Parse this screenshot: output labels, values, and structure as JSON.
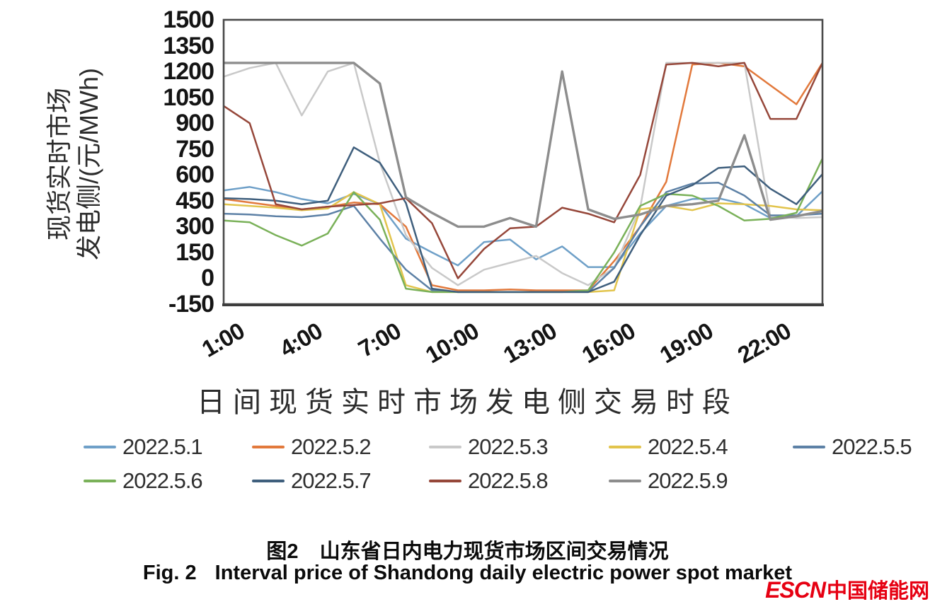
{
  "chart": {
    "y_axis": {
      "label_line1": "现货实时市场",
      "label_line2": "发电侧/(元/MWh)",
      "ticks": [
        1500,
        1350,
        1200,
        1050,
        900,
        750,
        600,
        450,
        300,
        150,
        0,
        -150
      ]
    },
    "x_axis": {
      "label": "日间现货实时市场发电侧交易时段",
      "tick_hours": [
        1,
        4,
        7,
        10,
        13,
        16,
        19,
        22
      ],
      "tick_labels": [
        "1:00",
        "4:00",
        "7:00",
        "10:00",
        "13:00",
        "16:00",
        "19:00",
        "22:00"
      ]
    }
  },
  "chart_data": {
    "type": "line",
    "title": "",
    "xlabel": "日间现货实时市场发电侧交易时段",
    "ylabel": "现货实时市场发电侧/(元/MWh)",
    "ylim": [
      -150,
      1500
    ],
    "xlim": [
      1,
      24
    ],
    "x_tick_positions": [
      1,
      4,
      7,
      10,
      13,
      16,
      19,
      22
    ],
    "x_tick_labels": [
      "1:00",
      "4:00",
      "7:00",
      "10:00",
      "13:00",
      "16:00",
      "19:00",
      "22:00"
    ],
    "grid": false,
    "legend_position": "bottom",
    "x": [
      1,
      2,
      3,
      4,
      5,
      6,
      7,
      8,
      9,
      10,
      11,
      12,
      13,
      14,
      15,
      16,
      17,
      18,
      19,
      20,
      21,
      22,
      23,
      24
    ],
    "series": [
      {
        "name": "2022.5.1",
        "color": "#6fa0c8",
        "values": [
          510,
          530,
          500,
          460,
          435,
          490,
          430,
          230,
          150,
          75,
          210,
          225,
          110,
          185,
          65,
          65,
          260,
          420,
          460,
          465,
          430,
          350,
          360,
          505
        ]
      },
      {
        "name": "2022.5.2",
        "color": "#e2793c",
        "values": [
          460,
          440,
          420,
          400,
          415,
          440,
          430,
          300,
          -40,
          -70,
          -70,
          -65,
          -70,
          -70,
          -70,
          100,
          300,
          560,
          1240,
          1250,
          1230,
          1120,
          1010,
          1250
        ]
      },
      {
        "name": "2022.5.3",
        "color": "#c9c9c9",
        "values": [
          1170,
          1220,
          1250,
          945,
          1200,
          1250,
          670,
          250,
          60,
          -40,
          50,
          90,
          130,
          30,
          -40,
          60,
          410,
          1250,
          1250,
          1250,
          1250,
          360,
          350,
          355
        ]
      },
      {
        "name": "2022.5.4",
        "color": "#e2c44c",
        "values": [
          430,
          420,
          410,
          395,
          405,
          500,
          430,
          -40,
          -80,
          -80,
          -80,
          -80,
          -80,
          -80,
          -80,
          -70,
          400,
          420,
          395,
          435,
          430,
          420,
          400,
          395
        ]
      },
      {
        "name": "2022.5.5",
        "color": "#5d81a6",
        "values": [
          375,
          370,
          360,
          355,
          370,
          420,
          230,
          50,
          -70,
          -80,
          -80,
          -80,
          -80,
          -80,
          -80,
          60,
          300,
          500,
          550,
          555,
          480,
          365,
          365,
          375
        ]
      },
      {
        "name": "2022.5.6",
        "color": "#7ab159",
        "values": [
          335,
          325,
          250,
          190,
          260,
          500,
          340,
          -60,
          -80,
          -80,
          -80,
          -80,
          -80,
          -80,
          -70,
          150,
          420,
          490,
          480,
          420,
          335,
          345,
          380,
          695
        ]
      },
      {
        "name": "2022.5.7",
        "color": "#3f5f7d",
        "values": [
          465,
          460,
          450,
          430,
          450,
          760,
          670,
          437,
          -60,
          -80,
          -80,
          -80,
          -80,
          -80,
          -80,
          -20,
          250,
          480,
          540,
          640,
          650,
          520,
          430,
          605
        ]
      },
      {
        "name": "2022.5.8",
        "color": "#96473a",
        "values": [
          1000,
          900,
          430,
          400,
          415,
          425,
          435,
          465,
          320,
          0,
          170,
          290,
          300,
          410,
          375,
          325,
          600,
          1240,
          1250,
          1230,
          1250,
          925,
          925,
          1250
        ]
      },
      {
        "name": "2022.5.9",
        "color": "#8d8d8d",
        "values": [
          1250,
          1250,
          1250,
          1250,
          1250,
          1250,
          1130,
          470,
          380,
          300,
          300,
          350,
          300,
          1200,
          400,
          345,
          370,
          420,
          430,
          450,
          830,
          340,
          360,
          390
        ]
      }
    ]
  },
  "captions": {
    "zh_label": "图2",
    "zh_title": "山东省日内电力现货市场区间交易情况",
    "en_label": "Fig. 2",
    "en_title": "Interval price of Shandong daily electric power spot market"
  },
  "logo": {
    "text_en": "ESCN",
    "text_zh": "中国储能网",
    "color": "#e60012"
  }
}
